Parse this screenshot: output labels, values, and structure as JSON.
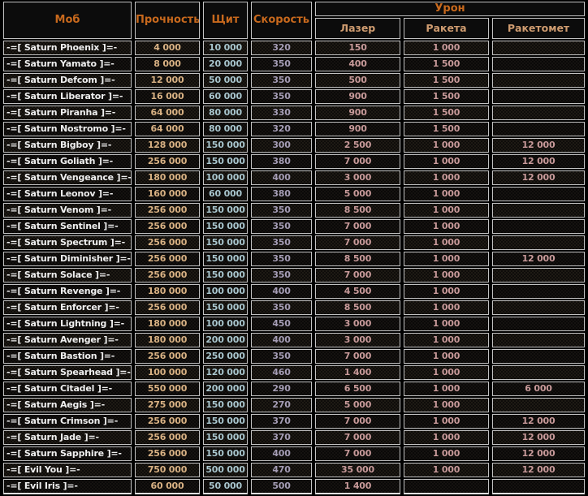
{
  "colors": {
    "page-bg": "#000000",
    "header-bg": "#0c0c0c",
    "border": "#c2c2c2",
    "header-text": "#c8691d",
    "subheader-text": "#cf9c70",
    "mob-text": "#efefef",
    "durability-text": "#d9b284",
    "shield-text": "#a9c6ce",
    "speed-text": "#a59db5",
    "damage-text": "#c89a9a",
    "row-odd-bg": "#0e0c0a",
    "row-odd-dot": "#1e1a14",
    "row-even-bg": "#0a0908",
    "row-even-dot": "#151210"
  },
  "chart_data": {
    "type": "table",
    "header": {
      "mob": "Моб",
      "durability": "Прочность",
      "shield": "Щит",
      "speed": "Скорость",
      "damage_group": "Урон",
      "damage_columns": [
        "Лазер",
        "Ракета",
        "Ракетомет"
      ]
    },
    "rows": [
      {
        "name": "-=[ Saturn Phoenix ]=-",
        "durability": "4 000",
        "shield": "10 000",
        "speed": "320",
        "laser": "150",
        "rocket": "1 000",
        "launcher": ""
      },
      {
        "name": "-=[ Saturn Yamato ]=-",
        "durability": "8 000",
        "shield": "20 000",
        "speed": "350",
        "laser": "400",
        "rocket": "1 500",
        "launcher": ""
      },
      {
        "name": "-=[ Saturn Defcom ]=-",
        "durability": "12 000",
        "shield": "50 000",
        "speed": "350",
        "laser": "500",
        "rocket": "1 500",
        "launcher": ""
      },
      {
        "name": "-=[ Saturn Liberator ]=-",
        "durability": "16 000",
        "shield": "60 000",
        "speed": "350",
        "laser": "900",
        "rocket": "1 500",
        "launcher": ""
      },
      {
        "name": "-=[ Saturn Piranha ]=-",
        "durability": "64 000",
        "shield": "80 000",
        "speed": "330",
        "laser": "900",
        "rocket": "1 500",
        "launcher": ""
      },
      {
        "name": "-=[ Saturn Nostromo ]=-",
        "durability": "64 000",
        "shield": "80 000",
        "speed": "320",
        "laser": "900",
        "rocket": "1 500",
        "launcher": ""
      },
      {
        "name": "-=[ Saturn Bigboy ]=-",
        "durability": "128 000",
        "shield": "150 000",
        "speed": "300",
        "laser": "2 500",
        "rocket": "1 000",
        "launcher": "12 000"
      },
      {
        "name": "-=[ Saturn Goliath ]=-",
        "durability": "256 000",
        "shield": "150 000",
        "speed": "380",
        "laser": "7 000",
        "rocket": "1 000",
        "launcher": "12 000"
      },
      {
        "name": "-=[ Saturn Vengeance ]=-",
        "durability": "180 000",
        "shield": "100 000",
        "speed": "400",
        "laser": "3 000",
        "rocket": "1 000",
        "launcher": "12 000"
      },
      {
        "name": "-=[ Saturn Leonov ]=-",
        "durability": "160 000",
        "shield": "60 000",
        "speed": "380",
        "laser": "5 000",
        "rocket": "1 000",
        "launcher": ""
      },
      {
        "name": "-=[ Saturn Venom ]=-",
        "durability": "256 000",
        "shield": "150 000",
        "speed": "350",
        "laser": "8 500",
        "rocket": "1 000",
        "launcher": ""
      },
      {
        "name": "-=[ Saturn Sentinel ]=-",
        "durability": "256 000",
        "shield": "150 000",
        "speed": "350",
        "laser": "7 000",
        "rocket": "1 000",
        "launcher": ""
      },
      {
        "name": "-=[ Saturn Spectrum ]=-",
        "durability": "256 000",
        "shield": "150 000",
        "speed": "350",
        "laser": "7 000",
        "rocket": "1 000",
        "launcher": ""
      },
      {
        "name": "-=[ Saturn Diminisher ]=-",
        "durability": "256 000",
        "shield": "150 000",
        "speed": "350",
        "laser": "8 500",
        "rocket": "1 000",
        "launcher": "12 000"
      },
      {
        "name": "-=[ Saturn Solace ]=-",
        "durability": "256 000",
        "shield": "150 000",
        "speed": "350",
        "laser": "7 000",
        "rocket": "1 000",
        "launcher": ""
      },
      {
        "name": "-=[ Saturn Revenge ]=-",
        "durability": "180 000",
        "shield": "100 000",
        "speed": "400",
        "laser": "4 500",
        "rocket": "1 000",
        "launcher": ""
      },
      {
        "name": "-=[ Saturn Enforcer ]=-",
        "durability": "256 000",
        "shield": "150 000",
        "speed": "350",
        "laser": "8 500",
        "rocket": "1 000",
        "launcher": ""
      },
      {
        "name": "-=[ Saturn Lightning ]=-",
        "durability": "180 000",
        "shield": "100 000",
        "speed": "450",
        "laser": "3 000",
        "rocket": "1 000",
        "launcher": ""
      },
      {
        "name": "-=[ Saturn Avenger ]=-",
        "durability": "180 000",
        "shield": "200 000",
        "speed": "400",
        "laser": "3 000",
        "rocket": "1 000",
        "launcher": ""
      },
      {
        "name": "-=[ Saturn Bastion ]=-",
        "durability": "256 000",
        "shield": "250 000",
        "speed": "350",
        "laser": "7 000",
        "rocket": "1 000",
        "launcher": ""
      },
      {
        "name": "-=[ Saturn Spearhead ]=-",
        "durability": "100 000",
        "shield": "120 000",
        "speed": "460",
        "laser": "1 400",
        "rocket": "1 000",
        "launcher": ""
      },
      {
        "name": "-=[ Saturn Citadel ]=-",
        "durability": "550 000",
        "shield": "200 000",
        "speed": "290",
        "laser": "6 500",
        "rocket": "1 000",
        "launcher": "6 000"
      },
      {
        "name": "-=[ Saturn Aegis ]=-",
        "durability": "275 000",
        "shield": "150 000",
        "speed": "270",
        "laser": "5 000",
        "rocket": "1 000",
        "launcher": ""
      },
      {
        "name": "-=[ Saturn Crimson ]=-",
        "durability": "256 000",
        "shield": "150 000",
        "speed": "370",
        "laser": "7 000",
        "rocket": "1 000",
        "launcher": "12 000"
      },
      {
        "name": "-=[ Saturn Jade ]=-",
        "durability": "256 000",
        "shield": "150 000",
        "speed": "370",
        "laser": "7 000",
        "rocket": "1 000",
        "launcher": "12 000"
      },
      {
        "name": "-=[ Saturn Sapphire ]=-",
        "durability": "256 000",
        "shield": "150 000",
        "speed": "400",
        "laser": "7 000",
        "rocket": "1 000",
        "launcher": "12 000"
      },
      {
        "name": "-=[ Evil You ]=-",
        "durability": "750 000",
        "shield": "500 000",
        "speed": "470",
        "laser": "35 000",
        "rocket": "1 000",
        "launcher": "12 000"
      },
      {
        "name": "-=[ Evil Iris ]=-",
        "durability": "60 000",
        "shield": "50 000",
        "speed": "500",
        "laser": "1 400",
        "rocket": "",
        "launcher": ""
      }
    ]
  }
}
